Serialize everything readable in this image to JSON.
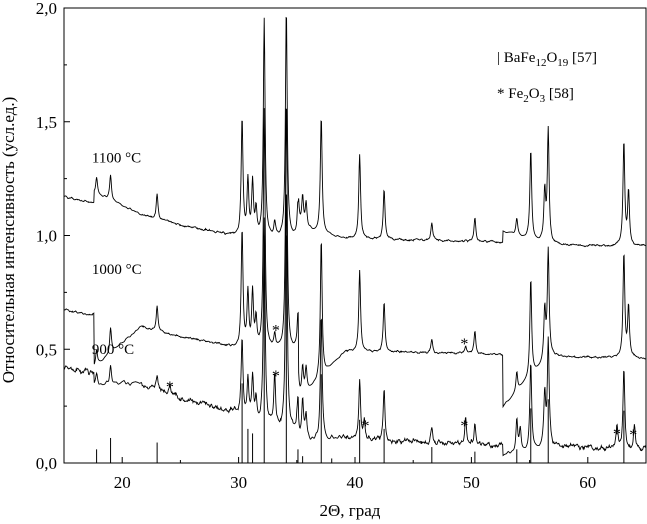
{
  "chart_data": {
    "type": "line",
    "xlabel": "2Θ, град",
    "ylabel": "Относительная интенсивность (усл.ед.)",
    "xlim": [
      15,
      65
    ],
    "ylim": [
      0,
      2.0
    ],
    "x_ticks": [
      {
        "value": 20,
        "label": "20"
      },
      {
        "value": 30,
        "label": "30"
      },
      {
        "value": 40,
        "label": "40"
      },
      {
        "value": 50,
        "label": "50"
      },
      {
        "value": 60,
        "label": "60"
      }
    ],
    "y_ticks": [
      {
        "value": 0.0,
        "label": "0,0"
      },
      {
        "value": 0.5,
        "label": "0,5"
      },
      {
        "value": 1.0,
        "label": "1,0"
      },
      {
        "value": 1.5,
        "label": "1,5"
      },
      {
        "value": 2.0,
        "label": "2,0"
      }
    ],
    "legend": {
      "placement": "top-right",
      "entries": [
        {
          "marker": "|",
          "formula": [
            [
              "BaFe",
              ""
            ],
            [
              "12",
              "sub"
            ],
            [
              "O",
              ""
            ],
            [
              "19",
              "sub"
            ]
          ],
          "ref": "[57]"
        },
        {
          "marker": "*",
          "formula": [
            [
              "Fe",
              ""
            ],
            [
              "2",
              "sub"
            ],
            [
              "O",
              ""
            ],
            [
              "3",
              "sub"
            ]
          ],
          "ref": "[58]"
        }
      ]
    },
    "series": [
      {
        "name": "1100 °C",
        "label_at": [
          17.4,
          1.32
        ],
        "baseline": [
          [
            15,
            1.17
          ],
          [
            20,
            1.115
          ],
          [
            25,
            1.045
          ],
          [
            29.5,
            1.0
          ],
          [
            31,
            0.99
          ],
          [
            40,
            0.985
          ],
          [
            50,
            0.975
          ],
          [
            60,
            0.955
          ],
          [
            65,
            0.955
          ]
        ],
        "peaks": [
          [
            17.8,
            0.07
          ],
          [
            19.0,
            0.11
          ],
          [
            23.0,
            0.11
          ],
          [
            30.3,
            0.52
          ],
          [
            30.8,
            0.24
          ],
          [
            31.2,
            0.24
          ],
          [
            31.5,
            0.12
          ],
          [
            32.2,
            0.96
          ],
          [
            33.1,
            0.06
          ],
          [
            34.1,
            1.01
          ],
          [
            35.1,
            0.15
          ],
          [
            35.5,
            0.13
          ],
          [
            35.8,
            0.11
          ],
          [
            37.1,
            0.51
          ],
          [
            40.4,
            0.37
          ],
          [
            42.5,
            0.22
          ],
          [
            46.6,
            0.08
          ],
          [
            50.3,
            0.1
          ],
          [
            53.9,
            0.07
          ],
          [
            55.1,
            0.39
          ],
          [
            56.3,
            0.22
          ],
          [
            56.6,
            0.5
          ],
          [
            63.1,
            0.46
          ],
          [
            63.5,
            0.24
          ]
        ],
        "stars": []
      },
      {
        "name": "1000 °C",
        "label_at": [
          17.4,
          0.83
        ],
        "baseline": [
          [
            15,
            0.675
          ],
          [
            20,
            0.62
          ],
          [
            25,
            0.555
          ],
          [
            29.5,
            0.51
          ],
          [
            31,
            0.5
          ],
          [
            40,
            0.49
          ],
          [
            50,
            0.48
          ],
          [
            60,
            0.465
          ],
          [
            65,
            0.46
          ]
        ],
        "peaks": [
          [
            17.8,
            0.07
          ],
          [
            19.0,
            0.11
          ],
          [
            23.0,
            0.11
          ],
          [
            30.3,
            0.52
          ],
          [
            30.8,
            0.24
          ],
          [
            31.2,
            0.24
          ],
          [
            31.5,
            0.12
          ],
          [
            32.2,
            1.05
          ],
          [
            33.1,
            0.06
          ],
          [
            34.1,
            1.1
          ],
          [
            35.1,
            0.15
          ],
          [
            35.5,
            0.13
          ],
          [
            35.8,
            0.11
          ],
          [
            37.1,
            0.61
          ],
          [
            40.4,
            0.36
          ],
          [
            42.5,
            0.22
          ],
          [
            46.6,
            0.06
          ],
          [
            49.5,
            0.03
          ],
          [
            50.3,
            0.1
          ],
          [
            53.9,
            0.09
          ],
          [
            55.1,
            0.43
          ],
          [
            56.3,
            0.22
          ],
          [
            56.6,
            0.47
          ],
          [
            63.1,
            0.46
          ],
          [
            63.5,
            0.22
          ]
        ],
        "stars": [
          [
            33.2,
            0.605
          ],
          [
            49.4,
            0.545
          ]
        ]
      },
      {
        "name": "900 °C",
        "label_at": [
          17.4,
          0.48
        ],
        "baseline": [
          [
            15,
            0.42
          ],
          [
            18,
            0.39
          ],
          [
            20,
            0.37
          ],
          [
            23,
            0.32
          ],
          [
            26,
            0.27
          ],
          [
            29.5,
            0.23
          ],
          [
            31,
            0.18
          ],
          [
            33,
            0.15
          ],
          [
            37,
            0.12
          ],
          [
            40,
            0.105
          ],
          [
            45,
            0.09
          ],
          [
            50,
            0.08
          ],
          [
            55,
            0.075
          ],
          [
            60,
            0.07
          ],
          [
            65,
            0.06
          ]
        ],
        "peaks": [
          [
            17.8,
            0.04
          ],
          [
            19.0,
            0.07
          ],
          [
            23.0,
            0.07
          ],
          [
            24.1,
            0.05
          ],
          [
            30.3,
            0.35
          ],
          [
            30.8,
            0.17
          ],
          [
            31.2,
            0.2
          ],
          [
            31.5,
            0.1
          ],
          [
            32.2,
            0.9
          ],
          [
            33.1,
            0.24
          ],
          [
            34.1,
            1.09
          ],
          [
            35.1,
            0.14
          ],
          [
            35.5,
            0.18
          ],
          [
            35.8,
            0.12
          ],
          [
            37.1,
            0.55
          ],
          [
            40.4,
            0.26
          ],
          [
            40.8,
            0.09
          ],
          [
            42.5,
            0.22
          ],
          [
            46.6,
            0.07
          ],
          [
            49.5,
            0.12
          ],
          [
            50.3,
            0.1
          ],
          [
            53.9,
            0.15
          ],
          [
            54.2,
            0.09
          ],
          [
            55.1,
            0.38
          ],
          [
            56.3,
            0.22
          ],
          [
            56.6,
            0.46
          ],
          [
            62.5,
            0.1
          ],
          [
            63.1,
            0.36
          ],
          [
            64.0,
            0.1
          ]
        ],
        "stars": [
          [
            24.1,
            0.355
          ],
          [
            33.2,
            0.405
          ],
          [
            40.9,
            0.185
          ],
          [
            49.4,
            0.185
          ],
          [
            62.5,
            0.15
          ],
          [
            63.9,
            0.145
          ]
        ]
      }
    ],
    "reference_lines": [
      {
        "x": 17.8,
        "h": 0.06
      },
      {
        "x": 19.0,
        "h": 0.11
      },
      {
        "x": 23.0,
        "h": 0.09
      },
      {
        "x": 30.3,
        "h": 0.35
      },
      {
        "x": 30.8,
        "h": 0.15
      },
      {
        "x": 31.2,
        "h": 0.13
      },
      {
        "x": 32.2,
        "h": 1.0
      },
      {
        "x": 34.1,
        "h": 1.0
      },
      {
        "x": 35.1,
        "h": 0.06
      },
      {
        "x": 35.5,
        "h": 0.03
      },
      {
        "x": 37.1,
        "h": 0.39
      },
      {
        "x": 38.0,
        "h": 0.02
      },
      {
        "x": 40.4,
        "h": 0.19
      },
      {
        "x": 42.5,
        "h": 0.15
      },
      {
        "x": 46.6,
        "h": 0.07
      },
      {
        "x": 50.3,
        "h": 0.05
      },
      {
        "x": 53.9,
        "h": 0.06
      },
      {
        "x": 55.1,
        "h": 0.24
      },
      {
        "x": 56.6,
        "h": 0.28
      },
      {
        "x": 63.1,
        "h": 0.23
      }
    ]
  }
}
